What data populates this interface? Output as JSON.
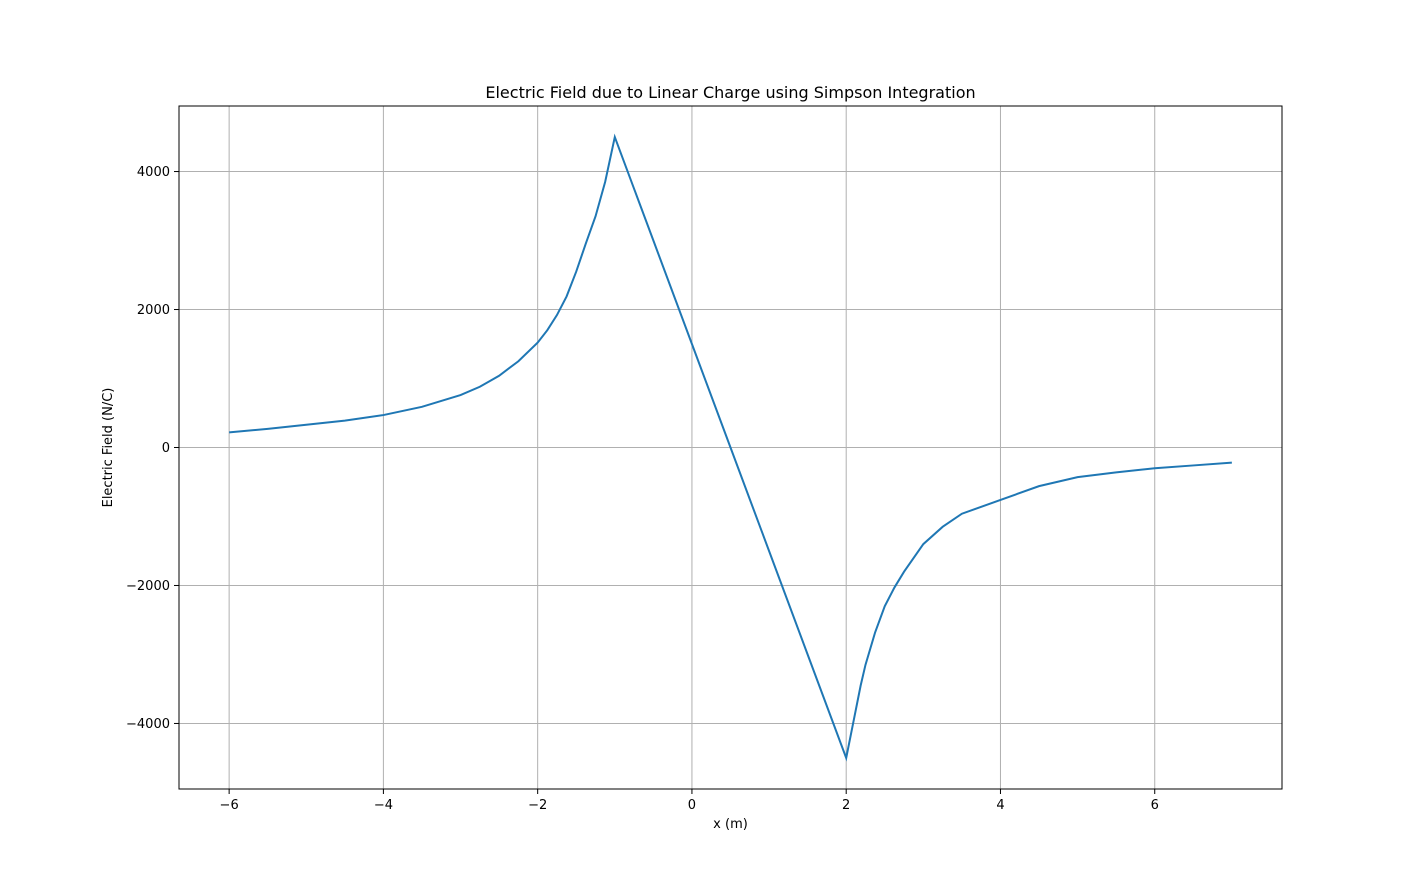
{
  "chart_data": {
    "type": "line",
    "title": "Electric Field due to Linear Charge using Simpson Integration",
    "xlabel": "x (m)",
    "ylabel": "Electric Field (N/C)",
    "xlim": [
      -6.65,
      7.65
    ],
    "ylim": [
      -4950,
      4950
    ],
    "xticks": [
      -6,
      -4,
      -2,
      0,
      2,
      4,
      6
    ],
    "xtick_labels": [
      "−6",
      "−4",
      "−2",
      "0",
      "2",
      "4",
      "6"
    ],
    "yticks": [
      -4000,
      -2000,
      0,
      2000,
      4000
    ],
    "ytick_labels": [
      "−4000",
      "−2000",
      "0",
      "2000",
      "4000"
    ],
    "grid": true,
    "series": [
      {
        "color": "#1f77b4",
        "x": [
          -6,
          -5.5,
          -5,
          -4.5,
          -4,
          -3.5,
          -3,
          -2.75,
          -2.5,
          -2.25,
          -2,
          -1.875,
          -1.75,
          -1.625,
          -1.5,
          -1.375,
          -1.25,
          -1.125,
          -1,
          -0.5,
          0,
          0.5,
          1,
          1.5,
          2,
          2.0625,
          2.125,
          2.1875,
          2.25,
          2.375,
          2.5,
          2.625,
          2.75,
          3,
          3.25,
          3.5,
          4,
          4.5,
          5,
          5.5,
          6,
          6.5,
          7
        ],
        "y": [
          220,
          270,
          330,
          390,
          470,
          590,
          760,
          880,
          1040,
          1250,
          1520,
          1700,
          1920,
          2190,
          2550,
          2960,
          3350,
          3850,
          4500,
          3000,
          1500,
          0,
          -1500,
          -3000,
          -4500,
          -4150,
          -3800,
          -3450,
          -3150,
          -2680,
          -2300,
          -2030,
          -1800,
          -1400,
          -1150,
          -960,
          -760,
          -560,
          -430,
          -360,
          -300,
          -260,
          -220
        ]
      }
    ]
  }
}
